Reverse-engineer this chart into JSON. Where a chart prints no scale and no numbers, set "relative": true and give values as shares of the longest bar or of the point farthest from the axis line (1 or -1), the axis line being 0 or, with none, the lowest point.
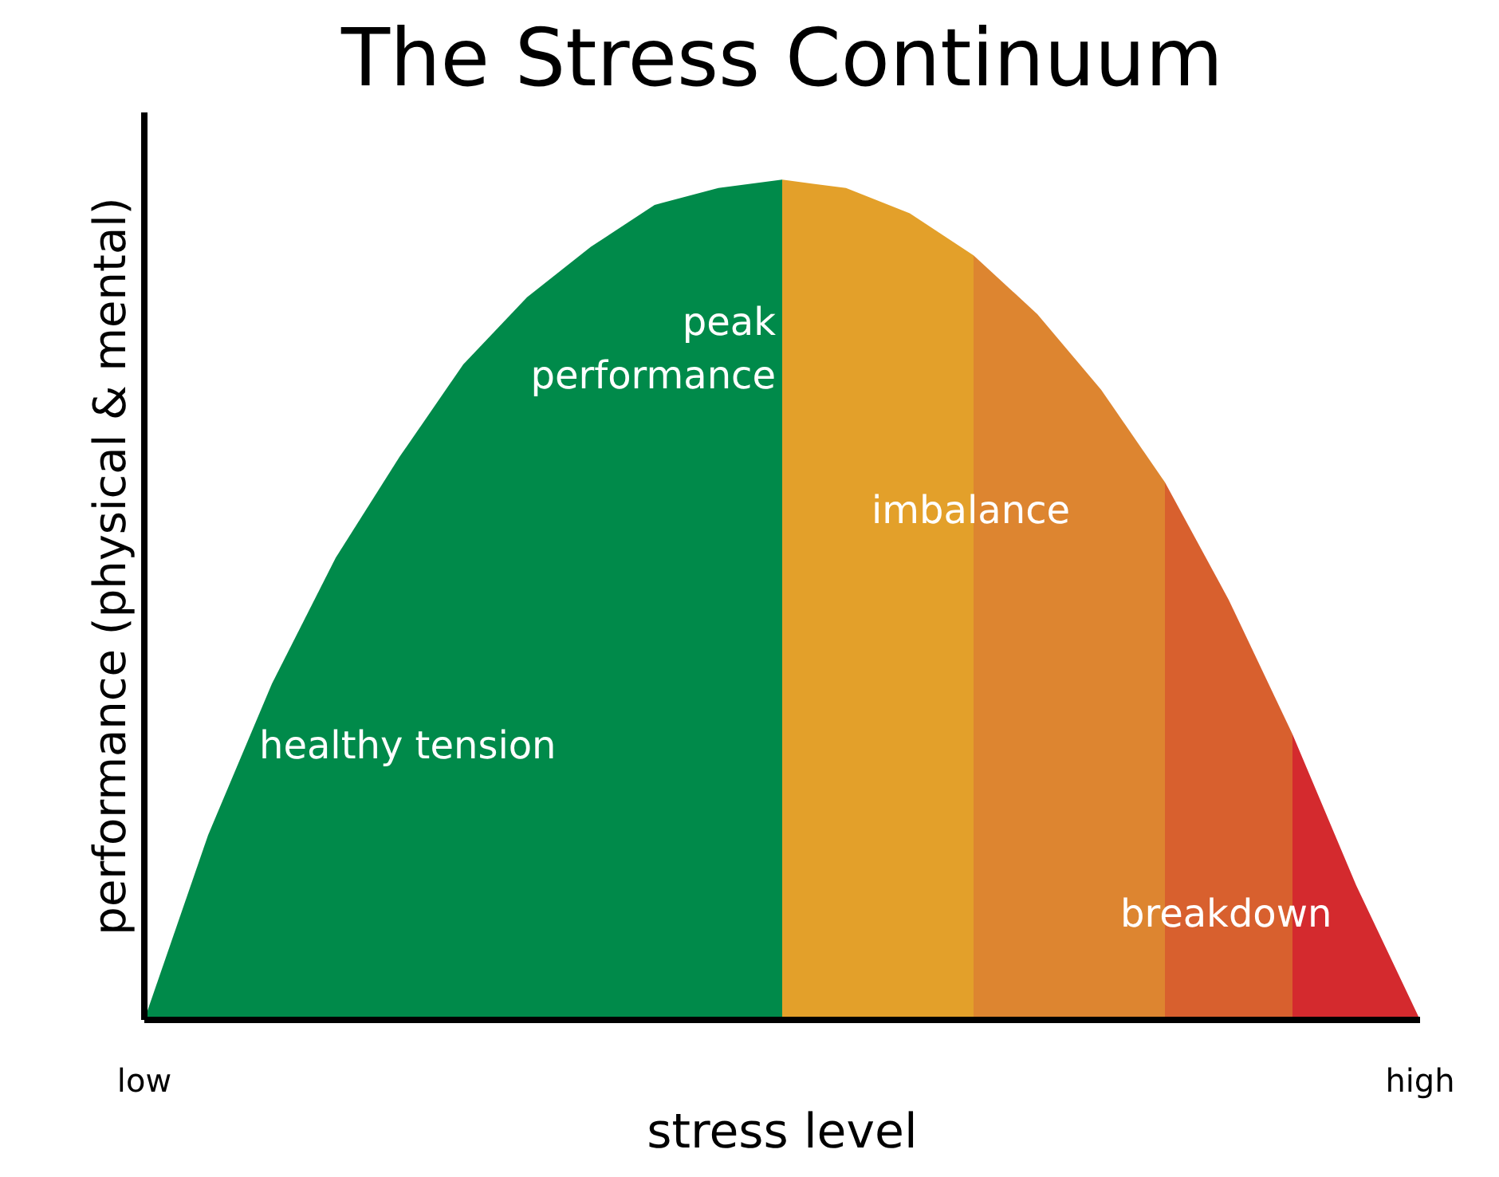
{
  "chart_data": {
    "type": "area",
    "title": "The Stress Continuum",
    "xlabel": "stress level",
    "ylabel": "performance (physical & mental)",
    "relative": true,
    "categories": [
      "low",
      null,
      null,
      null,
      null,
      null,
      null,
      null,
      null,
      null,
      null,
      null,
      null,
      null,
      null,
      null,
      null,
      null,
      null,
      null,
      "high"
    ],
    "series": [
      {
        "color": "#008a4a",
        "values": [
          0,
          0.22,
          0.4,
          0.55,
          0.67,
          0.78,
          0.86,
          0.92,
          0.97,
          0.99,
          1,
          null,
          null,
          null,
          null,
          null,
          null,
          null,
          null,
          null,
          null
        ]
      },
      {
        "color": "#e3a02a",
        "values": [
          null,
          null,
          null,
          null,
          null,
          null,
          null,
          null,
          null,
          null,
          1,
          0.99,
          0.96,
          0.91,
          null,
          null,
          null,
          null,
          null,
          null,
          null
        ]
      },
      {
        "color": "#dd8530",
        "values": [
          null,
          null,
          null,
          null,
          null,
          null,
          null,
          null,
          null,
          null,
          null,
          null,
          null,
          0.91,
          0.84,
          0.75,
          0.64,
          null,
          null,
          null,
          null
        ]
      },
      {
        "color": "#d8602e",
        "values": [
          null,
          null,
          null,
          null,
          null,
          null,
          null,
          null,
          null,
          null,
          null,
          null,
          null,
          null,
          null,
          null,
          0.64,
          0.5,
          0.34,
          null,
          null
        ]
      },
      {
        "color": "#d42a2e",
        "values": [
          null,
          null,
          null,
          null,
          null,
          null,
          null,
          null,
          null,
          null,
          null,
          null,
          null,
          null,
          null,
          null,
          null,
          null,
          0.34,
          0.16,
          0
        ]
      }
    ],
    "annotations": [
      "healthy tension",
      "peak performance",
      "imbalance",
      "breakdown"
    ]
  }
}
